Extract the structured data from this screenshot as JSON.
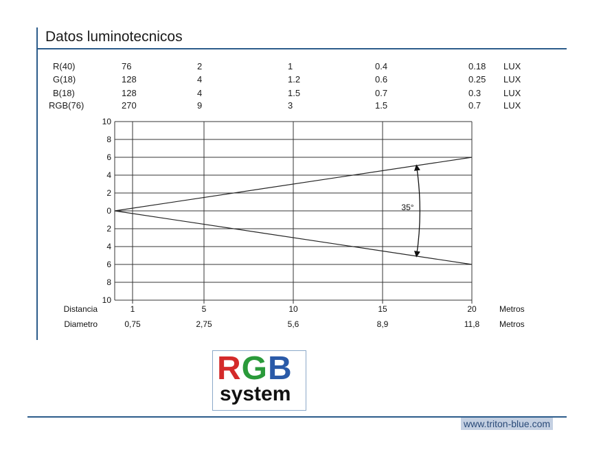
{
  "title": "Datos luminotecnicos",
  "lux_table": {
    "rows": [
      {
        "label": "R(40)",
        "values": [
          "76",
          "2",
          "1",
          "0.4",
          "0.18"
        ],
        "unit": "LUX"
      },
      {
        "label": "G(18)",
        "values": [
          "128",
          "4",
          "1.2",
          "0.6",
          "0.25"
        ],
        "unit": "LUX"
      },
      {
        "label": "B(18)",
        "values": [
          "128",
          "4",
          "1.5",
          "0.7",
          "0.3"
        ],
        "unit": "LUX"
      },
      {
        "label": "RGB(76)",
        "values": [
          "270",
          "9",
          "3",
          "1.5",
          "0.7"
        ],
        "unit": "LUX"
      }
    ]
  },
  "chart_data": {
    "type": "line",
    "y_ticks": [
      "10",
      "8",
      "6",
      "4",
      "2",
      "0",
      "2",
      "4",
      "6",
      "8",
      "10"
    ],
    "y_range": [
      -10,
      10
    ],
    "x_range": [
      0,
      20
    ],
    "x_grid": [
      1,
      5,
      10,
      15,
      20
    ],
    "angle_label": "35°",
    "series": [
      {
        "x": [
          0,
          20
        ],
        "y": [
          0,
          6
        ]
      },
      {
        "x": [
          0,
          20
        ],
        "y": [
          0,
          -6
        ]
      }
    ],
    "distancia": {
      "label": "Distancia",
      "values": [
        "1",
        "5",
        "10",
        "15",
        "20"
      ],
      "unit": "Metros"
    },
    "diametro": {
      "label": "Diametro",
      "values": [
        "0,75",
        "2,75",
        "5,6",
        "8,9",
        "11,8"
      ],
      "unit": "Metros"
    }
  },
  "logo": {
    "top": "RGB",
    "bottom": "system",
    "colors": {
      "R": "#d42a2a",
      "G": "#2a9a3a",
      "B": "#2a5aa8"
    }
  },
  "footer": {
    "url": "www.triton-blue.com"
  },
  "colors": {
    "accent": "#2a5a8a"
  }
}
